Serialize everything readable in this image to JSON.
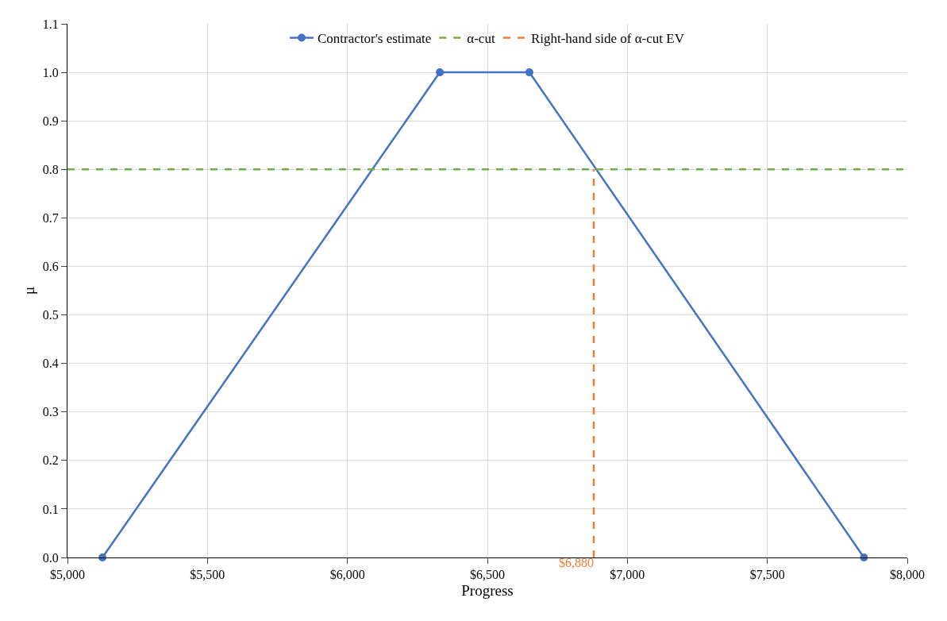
{
  "chart_data": {
    "type": "line",
    "xlabel": "Progress",
    "ylabel": "μ",
    "series": [
      {
        "name": "Contractor's estimate",
        "color": "#4472c4",
        "x": [
          5125,
          6330,
          6650,
          7845
        ],
        "values": [
          0,
          1,
          1,
          0
        ],
        "marker": "circle",
        "line_style": "solid"
      },
      {
        "name": "α-cut",
        "color": "#70ad47",
        "x": [
          5000,
          8000
        ],
        "values": [
          0.8,
          0.8
        ],
        "marker": "none",
        "line_style": "dashed"
      },
      {
        "name": "Right-hand side of α-cut EV",
        "color": "#ed7d31",
        "x": [
          6880,
          6880
        ],
        "values": [
          0,
          0.8
        ],
        "marker": "none",
        "line_style": "dashed"
      }
    ],
    "annotations": [
      "$6,880"
    ],
    "xlim": [
      5000,
      8000
    ],
    "xticks": [
      {
        "value": 5000,
        "label": "$5,000"
      },
      {
        "value": 5500,
        "label": "$5,500"
      },
      {
        "value": 6000,
        "label": "$6,000"
      },
      {
        "value": 6500,
        "label": "$6,500"
      },
      {
        "value": 7000,
        "label": "$7,000"
      },
      {
        "value": 7500,
        "label": "$7,500"
      },
      {
        "value": 8000,
        "label": "$8,000"
      }
    ],
    "ylim": [
      0,
      1.1
    ],
    "yticks": [
      {
        "value": 0,
        "label": "0.0"
      },
      {
        "value": 0.1,
        "label": "0.1"
      },
      {
        "value": 0.2,
        "label": "0.2"
      },
      {
        "value": 0.3,
        "label": "0.3"
      },
      {
        "value": 0.4,
        "label": "0.4"
      },
      {
        "value": 0.5,
        "label": "0.5"
      },
      {
        "value": 0.6,
        "label": "0.6"
      },
      {
        "value": 0.7,
        "label": "0.7"
      },
      {
        "value": 0.8,
        "label": "0.8"
      },
      {
        "value": 0.9,
        "label": "0.9"
      },
      {
        "value": 1.0,
        "label": "1.0"
      },
      {
        "value": 1.1,
        "label": "1.1"
      }
    ],
    "grid": true,
    "legend": "top"
  }
}
